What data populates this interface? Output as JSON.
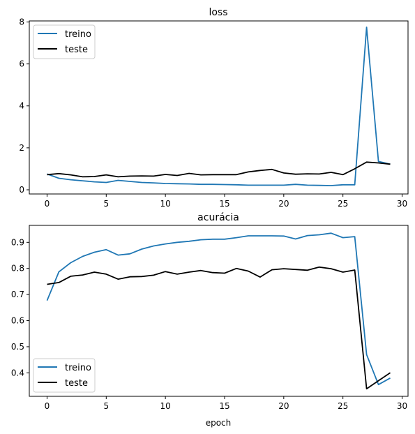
{
  "chart_data": [
    {
      "type": "line",
      "title": "loss",
      "xlabel": "",
      "ylabel": "",
      "xlim": [
        -1.5,
        30.5
      ],
      "ylim": [
        -0.2,
        8.05
      ],
      "xticks": [
        0,
        5,
        10,
        15,
        20,
        25,
        30
      ],
      "yticks": [
        0,
        2,
        4,
        6,
        8
      ],
      "grid": false,
      "legend_position": "top-left",
      "x": [
        0,
        1,
        2,
        3,
        4,
        5,
        6,
        7,
        8,
        9,
        10,
        11,
        12,
        13,
        14,
        15,
        16,
        17,
        18,
        19,
        20,
        21,
        22,
        23,
        24,
        25,
        26,
        27,
        28,
        29
      ],
      "series": [
        {
          "name": "treino",
          "color": "#1f77b4",
          "values": [
            0.75,
            0.55,
            0.48,
            0.43,
            0.38,
            0.35,
            0.45,
            0.4,
            0.35,
            0.33,
            0.3,
            0.29,
            0.28,
            0.26,
            0.26,
            0.25,
            0.24,
            0.22,
            0.22,
            0.22,
            0.22,
            0.26,
            0.22,
            0.21,
            0.2,
            0.24,
            0.24,
            7.75,
            1.35,
            1.22
          ]
        },
        {
          "name": "teste",
          "color": "#000000",
          "values": [
            0.72,
            0.77,
            0.71,
            0.62,
            0.63,
            0.71,
            0.62,
            0.65,
            0.66,
            0.65,
            0.73,
            0.68,
            0.78,
            0.71,
            0.72,
            0.72,
            0.72,
            0.85,
            0.92,
            0.97,
            0.8,
            0.74,
            0.76,
            0.75,
            0.83,
            0.72,
            1.0,
            1.32,
            1.28,
            1.22
          ]
        }
      ]
    },
    {
      "type": "line",
      "title": "acurácia",
      "xlabel": "epoch",
      "ylabel": "",
      "xlim": [
        -1.5,
        30.5
      ],
      "ylim": [
        0.31,
        0.965
      ],
      "xticks": [
        0,
        5,
        10,
        15,
        20,
        25,
        30
      ],
      "yticks": [
        0.4,
        0.5,
        0.6,
        0.7,
        0.8,
        0.9
      ],
      "grid": false,
      "legend_position": "bottom-left",
      "x": [
        0,
        1,
        2,
        3,
        4,
        5,
        6,
        7,
        8,
        9,
        10,
        11,
        12,
        13,
        14,
        15,
        16,
        17,
        18,
        19,
        20,
        21,
        22,
        23,
        24,
        25,
        26,
        27,
        28,
        29
      ],
      "series": [
        {
          "name": "treino",
          "color": "#1f77b4",
          "values": [
            0.677,
            0.787,
            0.822,
            0.846,
            0.862,
            0.872,
            0.851,
            0.856,
            0.874,
            0.886,
            0.894,
            0.9,
            0.904,
            0.91,
            0.912,
            0.912,
            0.918,
            0.925,
            0.925,
            0.925,
            0.924,
            0.913,
            0.926,
            0.929,
            0.935,
            0.918,
            0.922,
            0.47,
            0.355,
            0.38
          ]
        },
        {
          "name": "teste",
          "color": "#000000",
          "values": [
            0.739,
            0.746,
            0.77,
            0.775,
            0.786,
            0.778,
            0.759,
            0.768,
            0.769,
            0.774,
            0.788,
            0.778,
            0.786,
            0.792,
            0.784,
            0.782,
            0.8,
            0.79,
            0.767,
            0.795,
            0.799,
            0.796,
            0.793,
            0.805,
            0.799,
            0.786,
            0.794,
            0.339,
            0.37,
            0.4
          ]
        }
      ]
    }
  ]
}
